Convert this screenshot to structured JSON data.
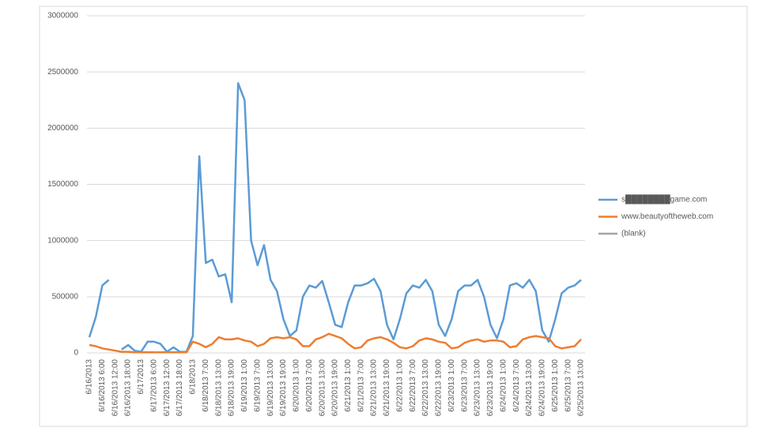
{
  "chart_data": {
    "type": "line",
    "categories": [
      "6/16/2013",
      null,
      "6/16/2013 6:00",
      null,
      "6/16/2013 12:00",
      null,
      "6/16/2013 18:00",
      null,
      "6/17/2013",
      null,
      "6/17/2013 6:00",
      null,
      "6/17/2013 12:00",
      null,
      "6/17/2013 18:00",
      null,
      "6/18/2013",
      null,
      "6/18/2013 7:00",
      null,
      "6/18/2013 13:00",
      null,
      "6/18/2013 19:00",
      null,
      "6/19/2013 1:00",
      null,
      "6/19/2013 7:00",
      null,
      "6/19/2013 13:00",
      null,
      "6/19/2013 19:00",
      null,
      "6/20/2013 1:00",
      null,
      "6/20/2013 7:00",
      null,
      "6/20/2013 13:00",
      null,
      "6/20/2013 19:00",
      null,
      "6/21/2013 1:00",
      null,
      "6/21/2013 7:00",
      null,
      "6/21/2013 13:00",
      null,
      "6/21/2013 19:00",
      null,
      "6/22/2013 1:00",
      null,
      "6/22/2013 7:00",
      null,
      "6/22/2013 13:00",
      null,
      "6/22/2013 19:00",
      null,
      "6/23/2013 1:00",
      null,
      "6/23/2013 7:00",
      null,
      "6/23/2013 13:00",
      null,
      "6/23/2013 19:00",
      null,
      "6/24/2013 1:00",
      null,
      "6/24/2013 7:00",
      null,
      "6/24/2013 13:00",
      null,
      "6/24/2013 19:00",
      null,
      "6/25/2013 1:00",
      null,
      "6/25/2013 7:00",
      null,
      "6/25/2013 13:00"
    ],
    "series": [
      {
        "name": "s████████game.com",
        "color": "#5b9bd5",
        "values": [
          140000,
          320000,
          600000,
          650000,
          null,
          30000,
          70000,
          20000,
          10000,
          100000,
          100000,
          80000,
          10000,
          50000,
          10000,
          10000,
          150000,
          1750000,
          800000,
          830000,
          680000,
          700000,
          450000,
          2400000,
          2250000,
          1000000,
          780000,
          960000,
          650000,
          550000,
          300000,
          150000,
          200000,
          500000,
          600000,
          580000,
          640000,
          450000,
          250000,
          230000,
          450000,
          600000,
          600000,
          620000,
          660000,
          550000,
          250000,
          120000,
          300000,
          530000,
          600000,
          580000,
          650000,
          550000,
          250000,
          150000,
          300000,
          550000,
          600000,
          600000,
          650000,
          500000,
          250000,
          130000,
          300000,
          600000,
          620000,
          580000,
          650000,
          550000,
          200000,
          100000,
          300000,
          530000,
          580000,
          600000,
          650000
        ]
      },
      {
        "name": "www.beautyoftheweb.com",
        "color": "#ed7d31",
        "values": [
          70000,
          60000,
          40000,
          30000,
          20000,
          10000,
          10000,
          5000,
          5000,
          5000,
          5000,
          5000,
          5000,
          5000,
          5000,
          5000,
          100000,
          80000,
          50000,
          80000,
          140000,
          120000,
          120000,
          130000,
          110000,
          100000,
          60000,
          80000,
          130000,
          140000,
          130000,
          140000,
          120000,
          60000,
          60000,
          120000,
          140000,
          170000,
          150000,
          130000,
          80000,
          40000,
          50000,
          110000,
          130000,
          140000,
          120000,
          90000,
          50000,
          40000,
          60000,
          110000,
          130000,
          120000,
          100000,
          90000,
          40000,
          50000,
          90000,
          110000,
          120000,
          100000,
          110000,
          110000,
          100000,
          50000,
          60000,
          120000,
          140000,
          150000,
          140000,
          130000,
          60000,
          40000,
          50000,
          60000,
          120000
        ]
      },
      {
        "name": "(blank)",
        "color": "#a5a5a5",
        "values": [
          null,
          null,
          null,
          null,
          null,
          null,
          null,
          null,
          null,
          null,
          null,
          null,
          null,
          null,
          null,
          null,
          null,
          null,
          null,
          null,
          null,
          null,
          null,
          null,
          null,
          null,
          null,
          null,
          null,
          null,
          null,
          null,
          null,
          null,
          null,
          null,
          null,
          null,
          null,
          null,
          null,
          null,
          null,
          null,
          null,
          null,
          null,
          null,
          null,
          null,
          null,
          null,
          null,
          null,
          null,
          null,
          null,
          null,
          null,
          null,
          null,
          null,
          null,
          null,
          null,
          null,
          null,
          null,
          null,
          null,
          null,
          null,
          null,
          null,
          null,
          null,
          null
        ]
      }
    ],
    "ylim": [
      0,
      3000000
    ],
    "yticks": [
      0,
      500000,
      1000000,
      1500000,
      2000000,
      2500000,
      3000000
    ],
    "grid": true,
    "legend": "right"
  }
}
